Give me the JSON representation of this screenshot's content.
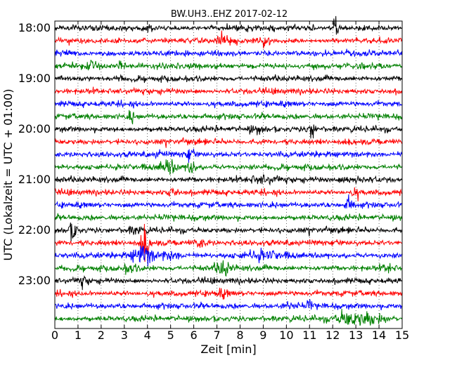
{
  "chart_data": {
    "type": "line",
    "title": "BW.UH3..EHZ 2017-02-12",
    "xlabel": "Zeit  [min]",
    "ylabel": "UTC (Lokalzeit = UTC + 01:00)",
    "xlim": [
      0,
      15
    ],
    "x_ticks": [
      "0",
      "1",
      "2",
      "3",
      "4",
      "5",
      "6",
      "7",
      "8",
      "9",
      "10",
      "11",
      "12",
      "13",
      "14",
      "15"
    ],
    "y_ticks": [
      "18:00",
      "19:00",
      "20:00",
      "21:00",
      "22:00",
      "23:00"
    ],
    "minutes_per_trace": 15,
    "trace_start": "18:00",
    "trace_count": 24,
    "trace_colors": [
      "#000000",
      "#ff0000",
      "#0000ff",
      "#008000"
    ],
    "grid": true,
    "legend": "none"
  }
}
